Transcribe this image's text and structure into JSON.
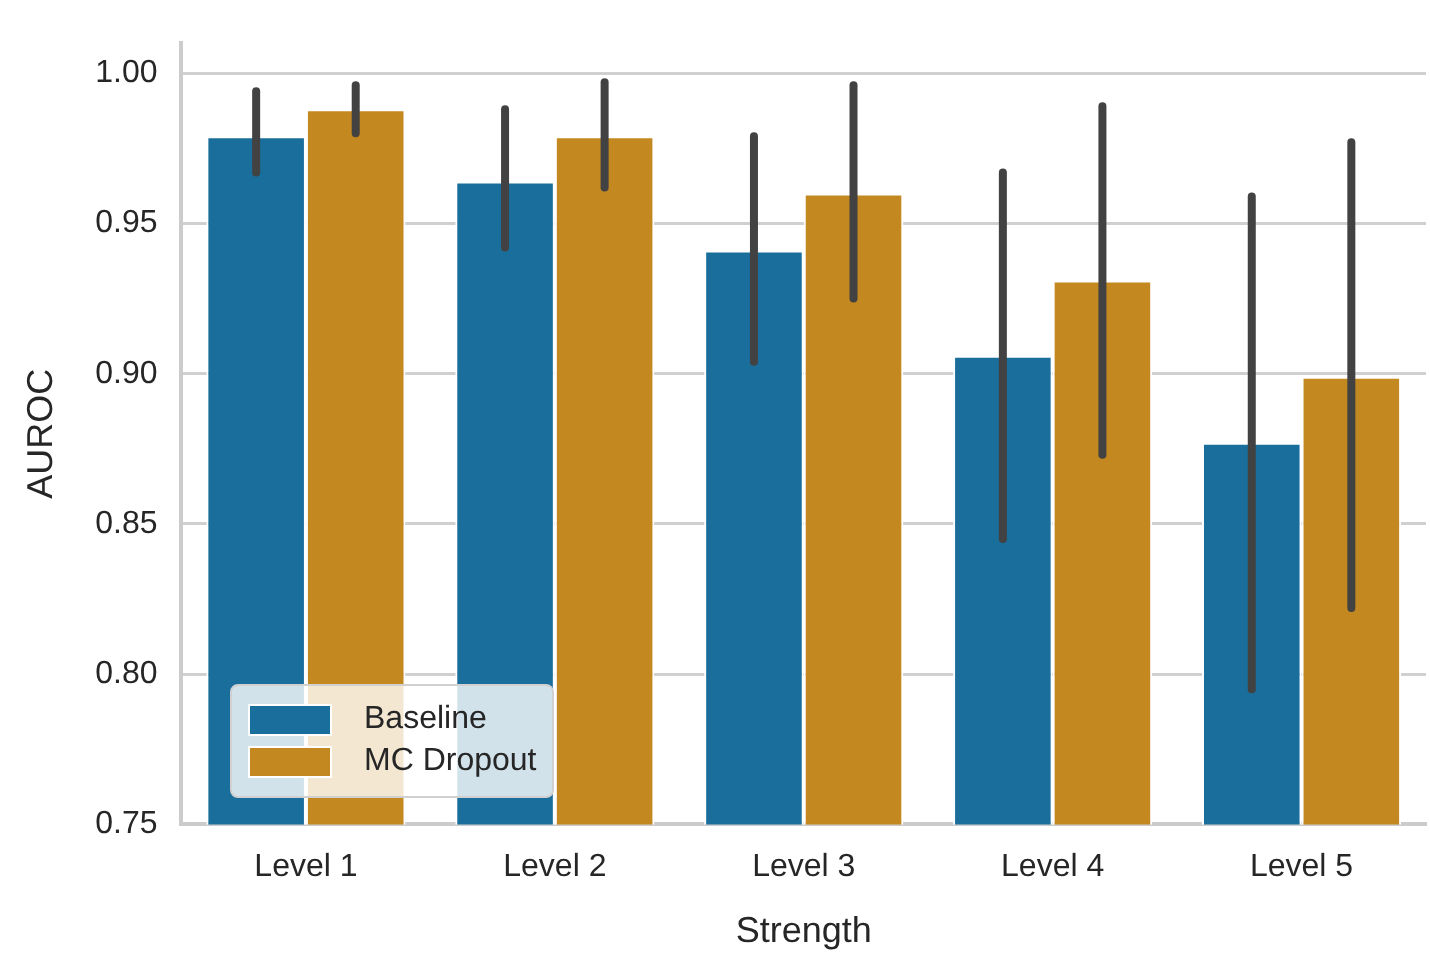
{
  "chart_data": {
    "type": "bar",
    "xlabel": "Strength",
    "ylabel": "AUROC",
    "categories": [
      "Level 1",
      "Level 2",
      "Level 3",
      "Level 4",
      "Level 5"
    ],
    "series": [
      {
        "name": "Baseline",
        "color": "#1a6e9c",
        "values": [
          0.979,
          0.964,
          0.941,
          0.906,
          0.877
        ],
        "errors": [
          [
            0.967,
            0.994
          ],
          [
            0.942,
            0.988
          ],
          [
            0.904,
            0.979
          ],
          [
            0.845,
            0.967
          ],
          [
            0.795,
            0.959
          ]
        ]
      },
      {
        "name": "MC Dropout",
        "color": "#c38820",
        "values": [
          0.988,
          0.979,
          0.96,
          0.931,
          0.899
        ],
        "errors": [
          [
            0.98,
            0.996
          ],
          [
            0.962,
            0.997
          ],
          [
            0.925,
            0.996
          ],
          [
            0.873,
            0.989
          ],
          [
            0.822,
            0.977
          ]
        ]
      }
    ],
    "ylim": [
      0.75,
      1.01
    ],
    "yticks": [
      0.75,
      {
        "value": 0.8,
        "label": "0.80"
      },
      0.85,
      {
        "value": 0.9,
        "label": "0.90"
      },
      0.95,
      {
        "value": 1.0,
        "label": "1.00"
      }
    ],
    "grid": "y",
    "legend": "bottom left"
  }
}
